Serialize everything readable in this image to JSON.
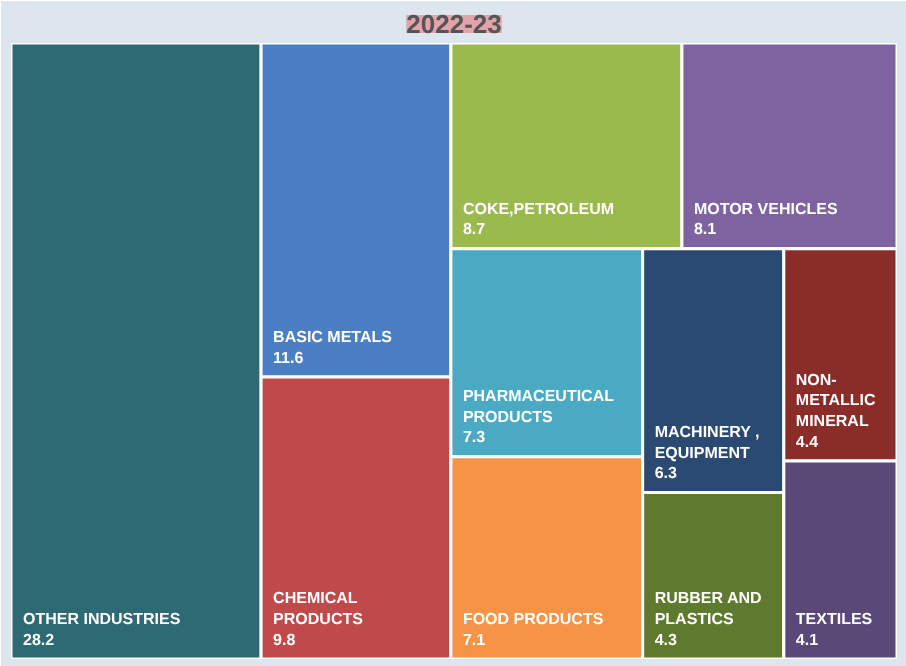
{
  "chart_data": {
    "type": "other",
    "title": "2022-23",
    "categories": [
      "OTHER INDUSTRIES",
      "BASIC METALS",
      "CHEMICAL PRODUCTS",
      "COKE,PETROLEUM",
      "PHARMACEUTICAL PRODUCTS",
      "FOOD PRODUCTS",
      "MOTOR VEHICLES",
      "MACHINERY , EQUIPMENT",
      "NON-METALLIC MINERAL",
      "RUBBER AND PLASTICS",
      "TEXTILES"
    ],
    "values": [
      28.2,
      11.6,
      9.8,
      8.7,
      7.3,
      7.1,
      8.1,
      6.3,
      4.4,
      4.3,
      4.1
    ],
    "colors": [
      "#2d6a73",
      "#4b7fc4",
      "#c0494a",
      "#9aba4e",
      "#4aaac4",
      "#f59446",
      "#7f63a1",
      "#2b4a72",
      "#8a2d29",
      "#5e7a2e",
      "#5a4878"
    ],
    "data_labels": true
  }
}
